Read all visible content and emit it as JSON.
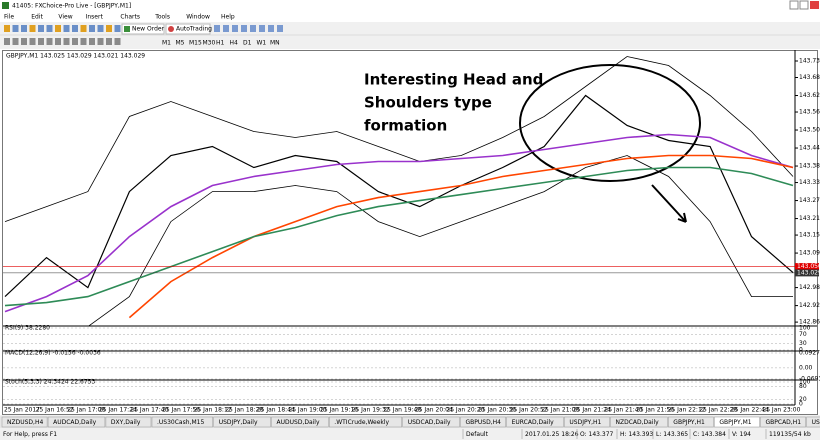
{
  "window": {
    "title": "41405: FXChoice-Pro Live - [GBPJPY,M1]"
  },
  "menu": [
    "File",
    "Edit",
    "View",
    "Insert",
    "Charts",
    "Tools",
    "Window",
    "Help"
  ],
  "toolbar": {
    "new_order": "New Order",
    "auto_trading": "AutoTrading",
    "timeframes": [
      "M1",
      "M5",
      "M15",
      "M30",
      "H1",
      "H4",
      "D1",
      "W1",
      "MN"
    ]
  },
  "chart": {
    "header": "GBPJPY,M1  143.025 143.029 143.021 143.029",
    "annotation": [
      "Interesting Head and",
      "Shoulders type",
      "formation"
    ],
    "ylim": [
      142.852,
      143.765
    ],
    "yticks": [
      {
        "value": 143.735,
        "label": "143.735"
      },
      {
        "value": 143.68,
        "label": "143.680"
      },
      {
        "value": 143.62,
        "label": "143.620"
      },
      {
        "value": 143.565,
        "label": "143.565"
      },
      {
        "value": 143.505,
        "label": "143.505"
      },
      {
        "value": 143.445,
        "label": "143.445"
      },
      {
        "value": 143.385,
        "label": "143.385"
      },
      {
        "value": 143.33,
        "label": "143.330"
      },
      {
        "value": 143.27,
        "label": "143.270"
      },
      {
        "value": 143.21,
        "label": "143.210"
      },
      {
        "value": 143.155,
        "label": "143.155"
      },
      {
        "value": 143.095,
        "label": "143.095"
      },
      {
        "value": 142.98,
        "label": "142.980"
      },
      {
        "value": 142.92,
        "label": "142.920"
      },
      {
        "value": 142.865,
        "label": "142.865"
      }
    ],
    "price_labels": [
      {
        "value": 143.05,
        "label": "143.050",
        "color": "#e00000"
      },
      {
        "value": 143.029,
        "label": "143.029",
        "color": "#333333"
      }
    ],
    "series": [
      {
        "color": "#000000",
        "values": [
          142.95,
          143.08,
          142.98,
          143.3,
          143.42,
          143.45,
          143.38,
          143.42,
          143.4,
          143.3,
          143.25,
          143.32,
          143.38,
          143.45,
          143.62,
          143.52,
          143.47,
          143.45,
          143.15,
          143.03
        ]
      },
      {
        "color": "#000000",
        "values": [
          143.2,
          143.25,
          143.3,
          143.55,
          143.6,
          143.55,
          143.5,
          143.48,
          143.5,
          143.45,
          143.4,
          143.42,
          143.48,
          143.55,
          143.65,
          143.75,
          143.72,
          143.62,
          143.5,
          143.35
        ]
      },
      {
        "color": "#000000",
        "values": [
          142.82,
          142.85,
          142.85,
          142.95,
          143.2,
          143.3,
          143.3,
          143.32,
          143.3,
          143.2,
          143.15,
          143.2,
          143.25,
          143.3,
          143.38,
          143.42,
          143.35,
          143.2,
          142.95,
          142.95
        ]
      },
      {
        "color": "#9932cc",
        "values": [
          142.9,
          142.95,
          143.02,
          143.15,
          143.25,
          143.32,
          143.35,
          143.37,
          143.39,
          143.4,
          143.4,
          143.41,
          143.42,
          143.44,
          143.46,
          143.48,
          143.49,
          143.48,
          143.42,
          143.38
        ]
      },
      {
        "color": "#ff4500",
        "values": [
          null,
          null,
          null,
          142.88,
          143.0,
          143.08,
          143.15,
          143.2,
          143.25,
          143.28,
          143.3,
          143.32,
          143.35,
          143.37,
          143.39,
          143.41,
          143.42,
          143.42,
          143.41,
          143.38
        ]
      },
      {
        "color": "#2e8b57",
        "values": [
          142.92,
          142.93,
          142.95,
          143.0,
          143.05,
          143.1,
          143.15,
          143.18,
          143.22,
          143.25,
          143.27,
          143.29,
          143.31,
          143.33,
          143.35,
          143.37,
          143.38,
          143.38,
          143.36,
          143.32
        ]
      }
    ],
    "x_labels": [
      "25 Jan 2017",
      "25 Jan 16:52",
      "25 Jan 17:08",
      "25 Jan 17:24",
      "25 Jan 17:40",
      "25 Jan 17:56",
      "25 Jan 18:12",
      "25 Jan 18:28",
      "25 Jan 18:44",
      "25 Jan 19:00",
      "25 Jan 19:16",
      "25 Jan 19:32",
      "25 Jan 19:48",
      "25 Jan 20:04",
      "25 Jan 20:20",
      "25 Jan 20:36",
      "25 Jan 20:52",
      "25 Jan 21:08",
      "25 Jan 21:24",
      "25 Jan 21:40",
      "25 Jan 21:56",
      "25 Jan 22:12",
      "25 Jan 22:28",
      "25 Jan 22:44",
      "25 Jan 23:00"
    ],
    "indicators": [
      {
        "label": "RSI(9) 38.2280",
        "ylim": [
          0,
          100
        ],
        "yticks": [
          100,
          70,
          30,
          0
        ]
      },
      {
        "label": "MACD(12,26,9) -0.0156 -0.0036",
        "ylim": [
          -0.0693,
          0.0927
        ],
        "yticks": [
          0.0927,
          {
            "value": 0,
            "label": "0.00"
          },
          -0.0693
        ]
      },
      {
        "label": "Stoch(5,3,3) 24.3424 22.6753",
        "ylim": [
          0,
          100
        ],
        "yticks": [
          100,
          80,
          20,
          0
        ]
      }
    ]
  },
  "tabs": [
    "NZDUSD,H4",
    "AUDCAD,Daily",
    "DXY,Daily",
    ".US30Cash,M15",
    "USDJPY,Daily",
    "AUDUSD,Daily",
    ".WTICrude,Weekly",
    "USDCAD,Daily",
    "GBPUSD,H4",
    "EURCAD,Daily",
    "USDJPY,H1",
    "NZDCAD,Daily",
    "GBPJPY,H1",
    "GBPJPY,M1",
    "GBPCAD,H1",
    "USDMXN,Daily"
  ],
  "status": [
    "For Help, press F1",
    "Default",
    "2017.01.25 18:26",
    "O: 143.377",
    "H: 143.393",
    "L: 143.365",
    "C: 143.384",
    "V: 194",
    "119135/54 kb"
  ]
}
